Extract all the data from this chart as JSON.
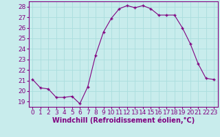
{
  "x": [
    0,
    1,
    2,
    3,
    4,
    5,
    6,
    7,
    8,
    9,
    10,
    11,
    12,
    13,
    14,
    15,
    16,
    17,
    18,
    19,
    20,
    21,
    22,
    23
  ],
  "y": [
    21.1,
    20.3,
    20.2,
    19.4,
    19.4,
    19.5,
    18.8,
    20.4,
    23.4,
    25.6,
    26.9,
    27.8,
    28.1,
    27.9,
    28.1,
    27.8,
    27.2,
    27.2,
    27.2,
    26.0,
    24.5,
    22.6,
    21.2,
    21.1
  ],
  "line_color": "#800080",
  "marker": "+",
  "marker_color": "#800080",
  "bg_color": "#c8ecec",
  "grid_color": "#aadddd",
  "xlabel": "Windchill (Refroidissement éolien,°C)",
  "xlabel_color": "#800080",
  "tick_color": "#800080",
  "spine_color": "#800080",
  "xlim": [
    -0.5,
    23.5
  ],
  "ylim": [
    18.5,
    28.5
  ],
  "yticks": [
    19,
    20,
    21,
    22,
    23,
    24,
    25,
    26,
    27,
    28
  ],
  "xticks": [
    0,
    1,
    2,
    3,
    4,
    5,
    6,
    7,
    8,
    9,
    10,
    11,
    12,
    13,
    14,
    15,
    16,
    17,
    18,
    19,
    20,
    21,
    22,
    23
  ],
  "tick_fontsize": 6.5,
  "xlabel_fontsize": 7.0,
  "linewidth": 0.8,
  "markersize": 3.5
}
